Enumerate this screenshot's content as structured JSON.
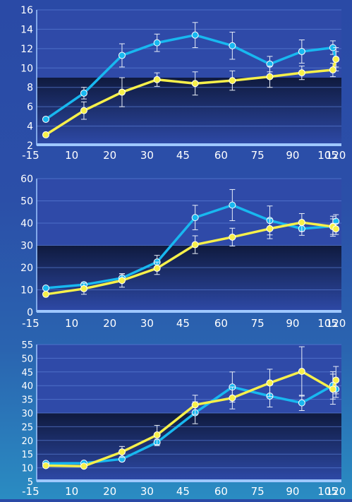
{
  "colors": {
    "cyan": "#18b8f0",
    "yellow": "#f7f04a",
    "band": "#1a2652",
    "plot": "#2f4aa8",
    "text": "#ffffff",
    "axis": "#9fc8ff"
  },
  "chart_data": [
    {
      "type": "line",
      "title": "",
      "xlabel": "",
      "ylabel": "",
      "categories": [
        "-15",
        "10",
        "20",
        "30",
        "45",
        "60",
        "75",
        "90",
        "105",
        "120"
      ],
      "ylim": [
        2,
        16
      ],
      "yticks": [
        2,
        4,
        6,
        8,
        10,
        12,
        14,
        16
      ],
      "shaded_band": [
        2,
        9
      ],
      "legend": "none",
      "grid": true,
      "series": [
        {
          "color": "cyan",
          "values": [
            4.7,
            7.4,
            11.3,
            12.6,
            13.4,
            12.3,
            10.4,
            11.7,
            12.1,
            10.9
          ],
          "err": [
            0.1,
            0.6,
            1.2,
            0.9,
            1.3,
            1.4,
            0.8,
            1.2,
            0.7,
            0.8
          ]
        },
        {
          "color": "yellow",
          "values": [
            3.1,
            5.6,
            7.5,
            8.8,
            8.4,
            8.7,
            9.1,
            9.5,
            9.8,
            10.9
          ],
          "err": [
            0.1,
            0.9,
            1.5,
            0.7,
            1.2,
            1.0,
            1.1,
            0.7,
            0.7,
            1.2
          ]
        }
      ]
    },
    {
      "type": "line",
      "title": "",
      "xlabel": "",
      "ylabel": "",
      "categories": [
        "-15",
        "10",
        "20",
        "30",
        "45",
        "60",
        "75",
        "90",
        "105",
        "120"
      ],
      "ylim": [
        0,
        60
      ],
      "yticks": [
        0,
        10,
        20,
        30,
        40,
        50,
        60
      ],
      "shaded_band": [
        0,
        30
      ],
      "legend": "none",
      "grid": true,
      "series": [
        {
          "color": "cyan",
          "values": [
            10.8,
            12.3,
            15.3,
            22.5,
            42.5,
            48.1,
            41.2,
            37.5,
            38.6,
            40.8
          ],
          "err": [
            0.5,
            1.0,
            2.0,
            3.0,
            5.5,
            7.0,
            6.5,
            3.0,
            4.5,
            3.0
          ]
        },
        {
          "color": "yellow",
          "values": [
            8.0,
            10.5,
            14.2,
            19.7,
            30.3,
            33.7,
            37.5,
            40.3,
            38.4,
            37.4
          ],
          "err": [
            0.5,
            2.5,
            3.0,
            2.8,
            4.0,
            4.0,
            4.5,
            4.0,
            3.5,
            2.5
          ]
        }
      ]
    },
    {
      "type": "line",
      "title": "",
      "xlabel": "",
      "ylabel": "",
      "categories": [
        "-15",
        "10",
        "20",
        "30",
        "45",
        "60",
        "75",
        "90",
        "105",
        "120"
      ],
      "ylim": [
        5,
        55
      ],
      "yticks": [
        5,
        10,
        15,
        20,
        25,
        30,
        35,
        40,
        45,
        50,
        55
      ],
      "shaded_band": [
        5,
        30
      ],
      "legend": "none",
      "grid": true,
      "series": [
        {
          "color": "cyan",
          "values": [
            11.6,
            11.7,
            13.2,
            19.3,
            30.1,
            39.5,
            36.2,
            33.7,
            40.1,
            38.7
          ],
          "err": [
            0.4,
            0.5,
            0.8,
            1.2,
            4.0,
            5.5,
            4.0,
            2.8,
            5.0,
            3.0
          ]
        },
        {
          "color": "yellow",
          "values": [
            10.8,
            10.6,
            15.8,
            22.0,
            33.0,
            35.5,
            41.0,
            45.2,
            38.7,
            42.0
          ],
          "err": [
            0.4,
            0.6,
            2.0,
            3.5,
            3.5,
            4.0,
            5.0,
            9.0,
            5.5,
            5.0
          ]
        }
      ]
    }
  ]
}
